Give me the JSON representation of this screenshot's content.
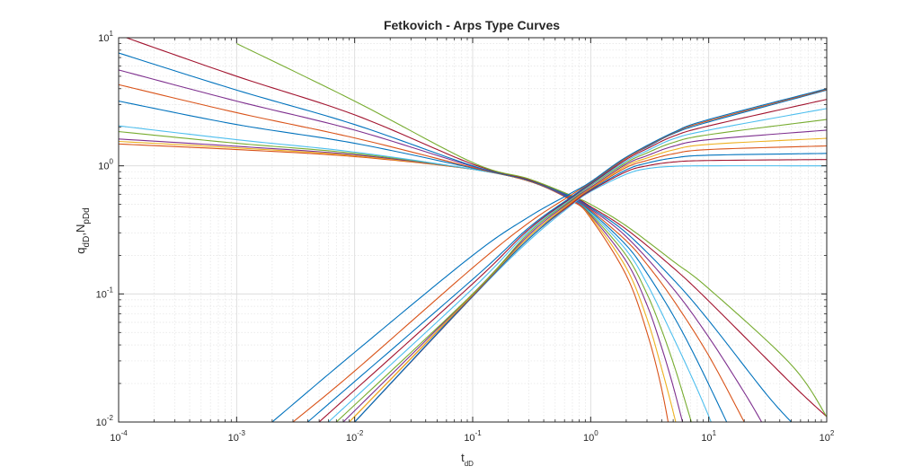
{
  "chart_data": {
    "type": "line",
    "title": "Fetkovich - Arps Type Curves",
    "xlabel": {
      "base": "t",
      "sub": "dD"
    },
    "ylabel": {
      "base1": "q",
      "sub1": "dD",
      "sep": ",",
      "base2": "N",
      "sub2": "pDd"
    },
    "x_scale": "log",
    "y_scale": "log",
    "xlim": [
      0.0001,
      100
    ],
    "ylim": [
      0.01,
      10
    ],
    "grid": true,
    "minor_grid": true,
    "legend": "none",
    "x_ticks": [
      {
        "base": "10",
        "exp": "-4"
      },
      {
        "base": "10",
        "exp": "-3"
      },
      {
        "base": "10",
        "exp": "-2"
      },
      {
        "base": "10",
        "exp": "-1"
      },
      {
        "base": "10",
        "exp": "0"
      },
      {
        "base": "10",
        "exp": "1"
      },
      {
        "base": "10",
        "exp": "2"
      }
    ],
    "y_ticks": [
      {
        "base": "10",
        "exp": "-2"
      },
      {
        "base": "10",
        "exp": "-1"
      },
      {
        "base": "10",
        "exp": "0"
      },
      {
        "base": "10",
        "exp": "1"
      }
    ],
    "colors": [
      "#0072BD",
      "#D95319",
      "#EDB120",
      "#7E2F8E",
      "#77AC30",
      "#4DBEEE",
      "#A2142F"
    ],
    "series": [
      {
        "family": "rate",
        "color": "#D95319",
        "x": [
          0.0001,
          0.001,
          0.01,
          0.1,
          0.3,
          0.7,
          1,
          2,
          3,
          4,
          5
        ],
        "y": [
          1.48,
          1.34,
          1.18,
          0.94,
          0.76,
          0.53,
          0.39,
          0.14,
          0.05,
          0.018,
          0.006
        ]
      },
      {
        "family": "rate",
        "color": "#EDB120",
        "x": [
          0.0001,
          0.001,
          0.01,
          0.1,
          0.3,
          0.7,
          1,
          2,
          3,
          4,
          5,
          6
        ],
        "y": [
          1.55,
          1.38,
          1.2,
          0.94,
          0.76,
          0.54,
          0.4,
          0.16,
          0.064,
          0.026,
          0.012,
          0.006
        ]
      },
      {
        "family": "rate",
        "color": "#7E2F8E",
        "x": [
          0.0001,
          0.001,
          0.01,
          0.1,
          0.3,
          0.7,
          1,
          2,
          3,
          4,
          5,
          6
        ],
        "y": [
          1.62,
          1.42,
          1.22,
          0.94,
          0.76,
          0.54,
          0.41,
          0.18,
          0.082,
          0.038,
          0.019,
          0.01
        ]
      },
      {
        "family": "rate",
        "color": "#77AC30",
        "x": [
          0.0001,
          0.001,
          0.01,
          0.1,
          0.3,
          0.7,
          1,
          2,
          3,
          4,
          5,
          6,
          8
        ],
        "y": [
          1.85,
          1.5,
          1.25,
          0.94,
          0.76,
          0.55,
          0.42,
          0.2,
          0.1,
          0.052,
          0.029,
          0.017,
          0.007
        ]
      },
      {
        "family": "rate",
        "color": "#4DBEEE",
        "x": [
          0.0001,
          0.001,
          0.01,
          0.1,
          0.3,
          0.7,
          1,
          2,
          3,
          5,
          8,
          11
        ],
        "y": [
          2.05,
          1.6,
          1.28,
          0.94,
          0.76,
          0.55,
          0.43,
          0.22,
          0.12,
          0.046,
          0.018,
          0.009
        ]
      },
      {
        "family": "rate",
        "color": "#0072BD",
        "x": [
          0.0001,
          0.001,
          0.01,
          0.1,
          0.3,
          0.7,
          1,
          2,
          3,
          5,
          8,
          15
        ],
        "y": [
          3.2,
          2.1,
          1.5,
          0.96,
          0.76,
          0.55,
          0.44,
          0.24,
          0.145,
          0.068,
          0.03,
          0.009
        ]
      },
      {
        "family": "rate",
        "color": "#D95319",
        "x": [
          0.0001,
          0.001,
          0.01,
          0.1,
          0.3,
          0.7,
          1,
          2,
          3,
          5,
          10,
          20
        ],
        "y": [
          4.3,
          2.6,
          1.65,
          0.97,
          0.76,
          0.56,
          0.45,
          0.26,
          0.17,
          0.09,
          0.033,
          0.01
        ]
      },
      {
        "family": "rate",
        "color": "#7E2F8E",
        "x": [
          0.0001,
          0.001,
          0.01,
          0.1,
          0.3,
          0.7,
          1,
          2,
          5,
          10,
          20,
          30
        ],
        "y": [
          5.6,
          3.2,
          1.9,
          0.99,
          0.77,
          0.56,
          0.46,
          0.28,
          0.11,
          0.046,
          0.017,
          0.009
        ]
      },
      {
        "family": "rate",
        "color": "#0072BD",
        "x": [
          0.0001,
          0.001,
          0.01,
          0.1,
          0.3,
          0.7,
          1,
          2,
          5,
          10,
          30,
          50
        ],
        "y": [
          7.6,
          3.9,
          2.1,
          1.0,
          0.77,
          0.57,
          0.47,
          0.3,
          0.13,
          0.062,
          0.017,
          0.01
        ]
      },
      {
        "family": "rate",
        "color": "#A2142F",
        "x": [
          0.0001,
          0.001,
          0.01,
          0.1,
          0.3,
          0.7,
          1,
          2,
          5,
          10,
          50,
          100
        ],
        "y": [
          10.5,
          5.0,
          2.5,
          1.03,
          0.78,
          0.58,
          0.48,
          0.32,
          0.16,
          0.088,
          0.02,
          0.011
        ]
      },
      {
        "family": "rate",
        "color": "#77AC30",
        "x": [
          0.001,
          0.01,
          0.1,
          0.3,
          0.7,
          1,
          2,
          5,
          10,
          50,
          100
        ],
        "y": [
          9.0,
          3.2,
          1.06,
          0.79,
          0.58,
          0.5,
          0.34,
          0.18,
          0.11,
          0.028,
          0.011
        ]
      },
      {
        "family": "cumulative",
        "color": "#4DBEEE",
        "x": [
          0.01,
          0.1,
          0.3,
          0.7,
          1,
          2,
          3,
          5,
          10,
          100
        ],
        "y": [
          0.01,
          0.095,
          0.26,
          0.5,
          0.63,
          0.86,
          0.95,
          0.99,
          1.0,
          1.0
        ]
      },
      {
        "family": "cumulative",
        "color": "#A2142F",
        "x": [
          0.01,
          0.1,
          0.3,
          0.7,
          1,
          2,
          3,
          5,
          10,
          100
        ],
        "y": [
          0.01,
          0.096,
          0.27,
          0.51,
          0.64,
          0.9,
          1.0,
          1.07,
          1.1,
          1.12
        ]
      },
      {
        "family": "cumulative",
        "color": "#0072BD",
        "x": [
          0.01,
          0.1,
          0.3,
          0.7,
          1,
          2,
          3,
          5,
          10,
          100
        ],
        "y": [
          0.01,
          0.097,
          0.27,
          0.52,
          0.65,
          0.93,
          1.05,
          1.15,
          1.21,
          1.25
        ]
      },
      {
        "family": "cumulative",
        "color": "#D95319",
        "x": [
          0.009,
          0.1,
          0.3,
          0.7,
          1,
          2,
          3,
          5,
          10,
          100
        ],
        "y": [
          0.01,
          0.098,
          0.28,
          0.52,
          0.66,
          0.97,
          1.1,
          1.24,
          1.34,
          1.43
        ]
      },
      {
        "family": "cumulative",
        "color": "#EDB120",
        "x": [
          0.009,
          0.1,
          0.3,
          0.7,
          1,
          2,
          3,
          5,
          10,
          100
        ],
        "y": [
          0.01,
          0.099,
          0.28,
          0.53,
          0.67,
          1.0,
          1.15,
          1.33,
          1.47,
          1.64
        ]
      },
      {
        "family": "cumulative",
        "color": "#7E2F8E",
        "x": [
          0.008,
          0.1,
          0.3,
          0.7,
          1,
          2,
          3,
          5,
          10,
          100
        ],
        "y": [
          0.01,
          0.1,
          0.29,
          0.54,
          0.68,
          1.03,
          1.2,
          1.42,
          1.6,
          1.9
        ]
      },
      {
        "family": "cumulative",
        "color": "#77AC30",
        "x": [
          0.007,
          0.1,
          0.3,
          0.7,
          1,
          2,
          3,
          5,
          10,
          100
        ],
        "y": [
          0.01,
          0.1,
          0.3,
          0.55,
          0.7,
          1.06,
          1.26,
          1.52,
          1.75,
          2.3
        ]
      },
      {
        "family": "cumulative",
        "color": "#4DBEEE",
        "x": [
          0.006,
          0.1,
          0.3,
          0.7,
          1,
          2,
          3,
          5,
          10,
          100
        ],
        "y": [
          0.01,
          0.11,
          0.31,
          0.56,
          0.71,
          1.09,
          1.31,
          1.62,
          1.9,
          2.8
        ]
      },
      {
        "family": "cumulative",
        "color": "#A2142F",
        "x": [
          0.005,
          0.1,
          0.3,
          0.7,
          1,
          2,
          3,
          5,
          10,
          100
        ],
        "y": [
          0.01,
          0.12,
          0.32,
          0.57,
          0.72,
          1.12,
          1.36,
          1.7,
          2.05,
          3.3
        ]
      },
      {
        "family": "cumulative",
        "color": "#0072BD",
        "x": [
          0.004,
          0.1,
          0.3,
          0.7,
          1,
          2,
          3,
          5,
          10,
          100
        ],
        "y": [
          0.01,
          0.13,
          0.33,
          0.58,
          0.73,
          1.15,
          1.4,
          1.78,
          2.2,
          3.9
        ]
      },
      {
        "family": "cumulative",
        "color": "#D95319",
        "x": [
          0.003,
          0.01,
          0.1,
          0.3,
          0.7,
          1,
          2,
          5,
          10,
          100
        ],
        "y": [
          0.01,
          0.025,
          0.16,
          0.36,
          0.6,
          0.74,
          1.15,
          1.8,
          2.25,
          3.95
        ]
      },
      {
        "family": "cumulative",
        "color": "#0072BD",
        "x": [
          0.002,
          0.01,
          0.1,
          0.3,
          0.7,
          1,
          2,
          5,
          10,
          100
        ],
        "y": [
          0.01,
          0.035,
          0.2,
          0.4,
          0.62,
          0.75,
          1.17,
          1.82,
          2.3,
          4.0
        ]
      }
    ]
  }
}
